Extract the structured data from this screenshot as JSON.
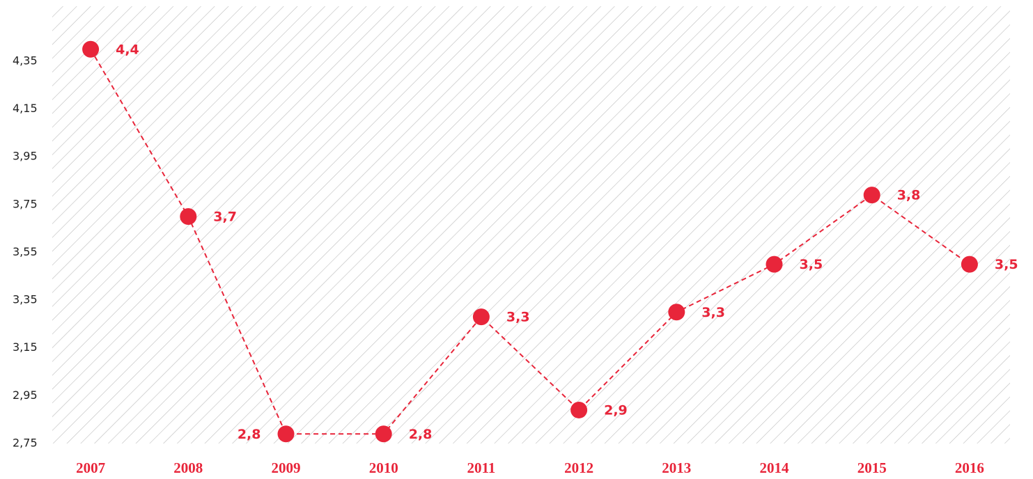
{
  "chart_data": {
    "type": "line",
    "categories": [
      "2007",
      "2008",
      "2009",
      "2010",
      "2011",
      "2012",
      "2013",
      "2014",
      "2015",
      "2016"
    ],
    "series": [
      {
        "color": "#e8253a",
        "values": [
          4.4,
          3.7,
          2.79,
          2.79,
          3.28,
          2.89,
          3.3,
          3.5,
          3.79,
          3.5
        ],
        "value_labels": [
          "4,4",
          "3,7",
          "2,8",
          "2,8",
          "3,3",
          "2,9",
          "3,3",
          "3,5",
          "3,8",
          "3,5"
        ]
      }
    ],
    "ylim": [
      2.75,
      4.58
    ],
    "yticks": [
      {
        "value": 2.75,
        "label": "2,75"
      },
      {
        "value": 2.95,
        "label": "2,95"
      },
      {
        "value": 3.15,
        "label": "3,15"
      },
      {
        "value": 3.35,
        "label": "3,35"
      },
      {
        "value": 3.55,
        "label": "3,55"
      },
      {
        "value": 3.75,
        "label": "3,75"
      },
      {
        "value": 3.95,
        "label": "3,95"
      },
      {
        "value": 4.15,
        "label": "4,15"
      },
      {
        "value": 4.35,
        "label": "4,35"
      }
    ]
  }
}
